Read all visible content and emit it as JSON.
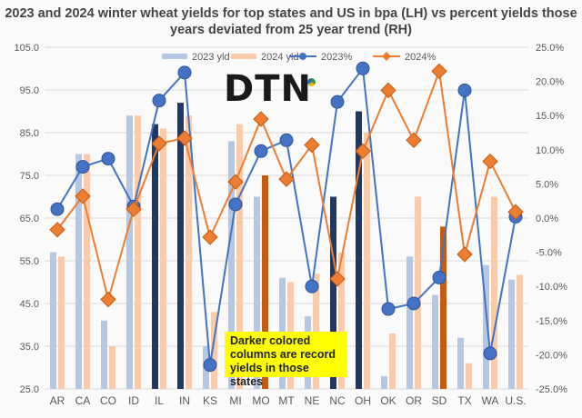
{
  "chart_data": {
    "type": "bar",
    "title": "2023 and 2024 winter wheat yields for top states and US in bpa (LH) vs percent yields those years deviated from 25 year trend (RH)",
    "categories": [
      "AR",
      "CA",
      "CO",
      "ID",
      "IL",
      "IN",
      "KS",
      "MI",
      "MO",
      "MT",
      "NE",
      "NC",
      "OH",
      "OK",
      "OR",
      "SD",
      "TX",
      "WA",
      "U.S."
    ],
    "series": [
      {
        "name": "2023 yld",
        "axis": "left",
        "kind": "bar",
        "values": [
          57,
          80,
          41,
          89,
          87,
          92,
          35,
          83,
          70,
          51,
          42,
          70,
          90,
          28,
          56,
          47,
          37,
          54,
          50.6
        ],
        "record": [
          false,
          false,
          false,
          false,
          true,
          true,
          false,
          false,
          false,
          false,
          false,
          true,
          true,
          false,
          false,
          false,
          false,
          false,
          false
        ]
      },
      {
        "name": "2024 yld",
        "axis": "left",
        "kind": "bar",
        "values": [
          56,
          80,
          35,
          89,
          86,
          89,
          43,
          87,
          75,
          50,
          52,
          57,
          85,
          38,
          70,
          63,
          31,
          70,
          51.7
        ],
        "record": [
          false,
          false,
          false,
          false,
          false,
          false,
          false,
          false,
          true,
          false,
          false,
          false,
          false,
          false,
          false,
          true,
          false,
          false,
          false
        ]
      },
      {
        "name": "2023%",
        "axis": "right",
        "kind": "line",
        "values": [
          1.3,
          7.5,
          8.7,
          1.7,
          17.2,
          21.3,
          -21.5,
          2.0,
          9.8,
          11.4,
          -10.0,
          17.0,
          21.9,
          -13.3,
          -12.5,
          -8.7,
          18.7,
          -19.8,
          0.2
        ]
      },
      {
        "name": "2024%",
        "axis": "right",
        "kind": "line",
        "values": [
          -1.7,
          3.2,
          -11.9,
          1.3,
          10.9,
          11.7,
          -2.8,
          5.3,
          14.5,
          5.7,
          10.7,
          -8.9,
          9.8,
          18.7,
          11.4,
          21.5,
          -5.3,
          8.3,
          0.9
        ]
      }
    ],
    "yleft": {
      "min": 25,
      "max": 105,
      "ticks": [
        "25.0",
        "35.0",
        "45.0",
        "55.0",
        "65.0",
        "75.0",
        "85.0",
        "95.0",
        "105.0"
      ]
    },
    "yright": {
      "min": -25,
      "max": 25,
      "ticks": [
        "-25.0%",
        "-20.0%",
        "-15.0%",
        "-10.0%",
        "-5.0%",
        "0.0%",
        "5.0%",
        "10.0%",
        "15.0%",
        "20.0%",
        "25.0%"
      ]
    },
    "grid": true,
    "legend": "top",
    "colors": {
      "bar2023": "#b4c7e7",
      "bar2023_record": "#203864",
      "bar2024": "#f8cbad",
      "bar2024_record": "#c55a11",
      "line2023": "#4472c4",
      "line2024": "#ed7d31",
      "grid": "#d9d9d9",
      "axis_text": "#595959"
    }
  },
  "branding": {
    "logo_text": "DTN"
  },
  "note": "Darker colored columns are record yields in those states"
}
